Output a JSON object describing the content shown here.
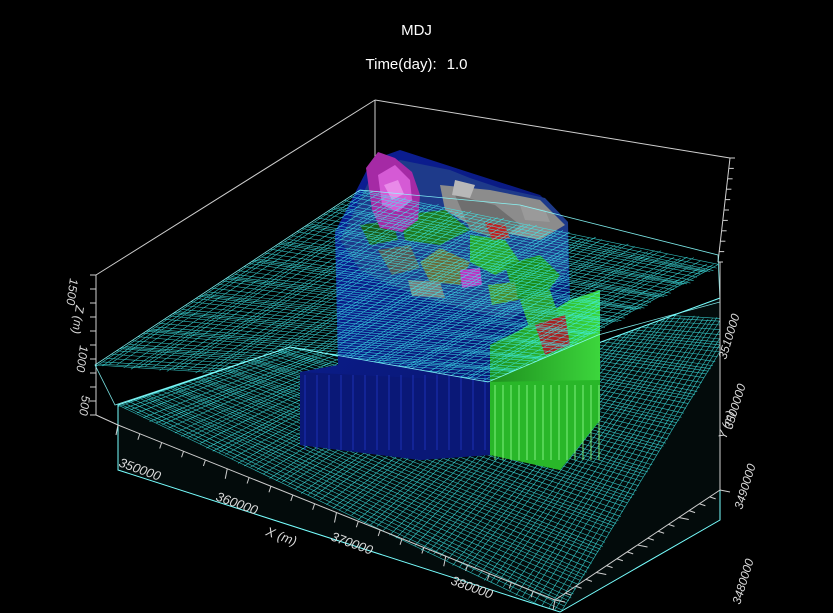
{
  "title": "MDJ",
  "time": {
    "label": "Time(day):",
    "value": "1.0"
  },
  "axes": {
    "x": {
      "label": "X (m)",
      "ticks": [
        "350000",
        "360000",
        "370000",
        "380000"
      ]
    },
    "y": {
      "label": "Y (m)",
      "ticks": [
        "3480000",
        "3490000",
        "3500000",
        "3510000"
      ]
    },
    "z": {
      "label": "Z (m)",
      "ticks": [
        "500",
        "1000",
        "1500"
      ]
    }
  },
  "colors": {
    "background": "#000000",
    "mesh": "#40f0f0",
    "bounding_box": "#dddddd",
    "volume_main": "#0a1a88",
    "volume_green": "#2fb52f",
    "volume_magenta": "#b030b0",
    "volume_grey": "#8a8a8a"
  }
}
